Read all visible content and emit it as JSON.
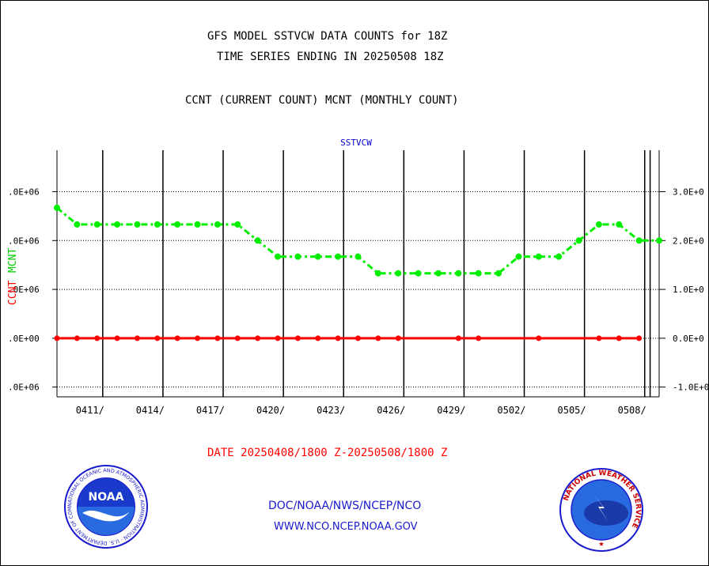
{
  "header": {
    "title_line1": "GFS MODEL SSTVCW DATA COUNTS for 18Z",
    "title_line2": "TIME SERIES ENDING IN 20250508 18Z",
    "subtitle": "CCNT (CURRENT COUNT) MCNT (MONTHLY COUNT)"
  },
  "footer": {
    "date_range": "DATE 20250408/1800 Z-20250508/1800 Z",
    "org_line": "DOC/NOAA/NWS/NCEP/NCO",
    "website": "WWW.NCO.NCEP.NOAA.GOV",
    "noaa_logo_text": "NOAA",
    "noaa_ring_text": "NATIONAL OCEANIC AND ATMOSPHERIC ADMINISTRATION · U.S. DEPARTMENT OF COMMERCE",
    "nws_ring_text": "NATIONAL WEATHER SERVICE"
  },
  "colors": {
    "ccnt": "#ff0000",
    "mcnt": "#00ee00",
    "series_label": "#0000cc",
    "footer_blue": "#1a1acc",
    "footer_red": "#ff0000"
  },
  "chart_data": {
    "type": "line",
    "title": "SSTVCW",
    "ylabel_left": "CCNT",
    "ylabel_left2": "MCNT",
    "y_ticks_left": [
      ".0E+06",
      ".0E+06",
      ".0E+06",
      ".0E+00",
      ".0E+06"
    ],
    "y_ticks_right": [
      "3.0E+0",
      "2.0E+0",
      "1.0E+0",
      "0.0E+0",
      "-1.0E+0"
    ],
    "y_tick_values": [
      3000000,
      2000000,
      1000000,
      0,
      -1000000
    ],
    "ylim": [
      -1200000,
      3850000
    ],
    "xlim": [
      0,
      30
    ],
    "x_tick_labels": [
      "0411/",
      "0414/",
      "0417/",
      "0420/",
      "0423/",
      "0426/",
      "0429/",
      "0502/",
      "0505/",
      "0508/"
    ],
    "x_tick_days": [
      2.28,
      5.28,
      8.28,
      11.28,
      14.28,
      17.28,
      20.28,
      23.28,
      26.28,
      29.28
    ],
    "vgrid_days": [
      2.28,
      5.28,
      8.28,
      11.28,
      14.28,
      17.28,
      20.28,
      23.28,
      26.28,
      29.28,
      29.55
    ],
    "grid": true,
    "series": [
      {
        "name": "CCNT",
        "x": [
          0,
          1,
          2,
          3,
          4,
          5,
          6,
          7,
          8,
          9,
          10,
          11,
          12,
          13,
          14,
          15,
          16,
          17,
          20,
          21,
          24,
          27,
          28,
          29
        ],
        "values": [
          0,
          0,
          0,
          0,
          0,
          0,
          0,
          0,
          0,
          0,
          0,
          0,
          0,
          0,
          0,
          0,
          0,
          0,
          0,
          0,
          0,
          0,
          0,
          0
        ]
      },
      {
        "name": "MCNT",
        "x": [
          0,
          1,
          2,
          3,
          4,
          5,
          6,
          7,
          8,
          9,
          10,
          11,
          12,
          13,
          14,
          15,
          16,
          17,
          18,
          19,
          20,
          21,
          22,
          23,
          24,
          25,
          26,
          27,
          28,
          29,
          30
        ],
        "values": [
          2670000,
          2330000,
          2330000,
          2330000,
          2330000,
          2330000,
          2330000,
          2330000,
          2330000,
          2330000,
          2000000,
          1670000,
          1670000,
          1670000,
          1670000,
          1670000,
          1330000,
          1330000,
          1330000,
          1330000,
          1330000,
          1330000,
          1330000,
          1670000,
          1670000,
          1670000,
          2000000,
          2330000,
          2330000,
          2000000,
          2000000
        ]
      }
    ]
  }
}
